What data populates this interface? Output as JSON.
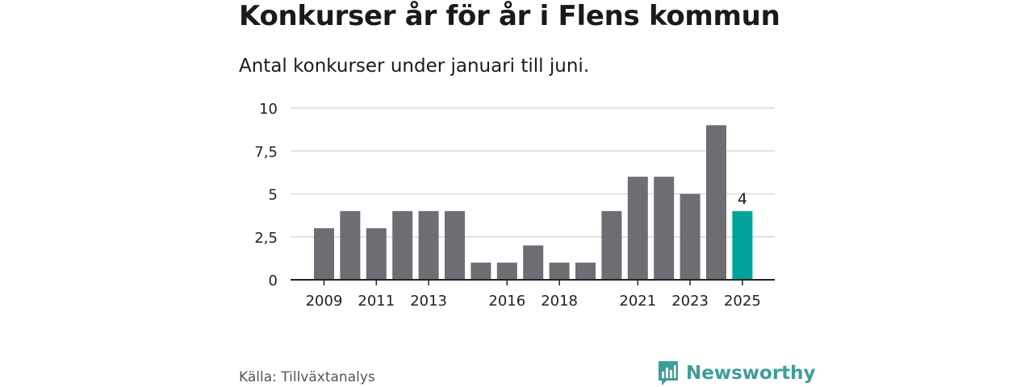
{
  "title": "Konkurser år för år i Flens kommun",
  "subtitle": "Antal konkurser under januari till juni.",
  "source": "Källa: Tillväxtanalys",
  "brand": {
    "name": "Newsworthy",
    "icon": "newsworthy-logo-icon"
  },
  "colors": {
    "bar": "#6e6d73",
    "highlight": "#00a399",
    "grid": "#d9d9d9",
    "axis": "#222222",
    "brand": "#3d9e98"
  },
  "chart_data": {
    "type": "bar",
    "title": "Konkurser år för år i Flens kommun",
    "subtitle": "Antal konkurser under januari till juni.",
    "categories": [
      "2009",
      "2010",
      "2011",
      "2012",
      "2013",
      "2014",
      "2015",
      "2016",
      "2017",
      "2018",
      "2019",
      "2020",
      "2021",
      "2022",
      "2023",
      "2024",
      "2025"
    ],
    "values": [
      3,
      4,
      3,
      4,
      4,
      4,
      1,
      1,
      2,
      1,
      1,
      4,
      6,
      6,
      5,
      9,
      4
    ],
    "highlight_index": 16,
    "highlight_label": "4",
    "x_tick_labels": [
      "2009",
      "2011",
      "2013",
      "2016",
      "2018",
      "2021",
      "2023",
      "2025"
    ],
    "y_ticks": [
      0,
      2.5,
      5,
      7.5,
      10
    ],
    "y_tick_labels": [
      "0",
      "2,5",
      "5",
      "7,5",
      "10"
    ],
    "ylim": [
      0,
      10
    ],
    "xlabel": "",
    "ylabel": "",
    "grid": true
  }
}
